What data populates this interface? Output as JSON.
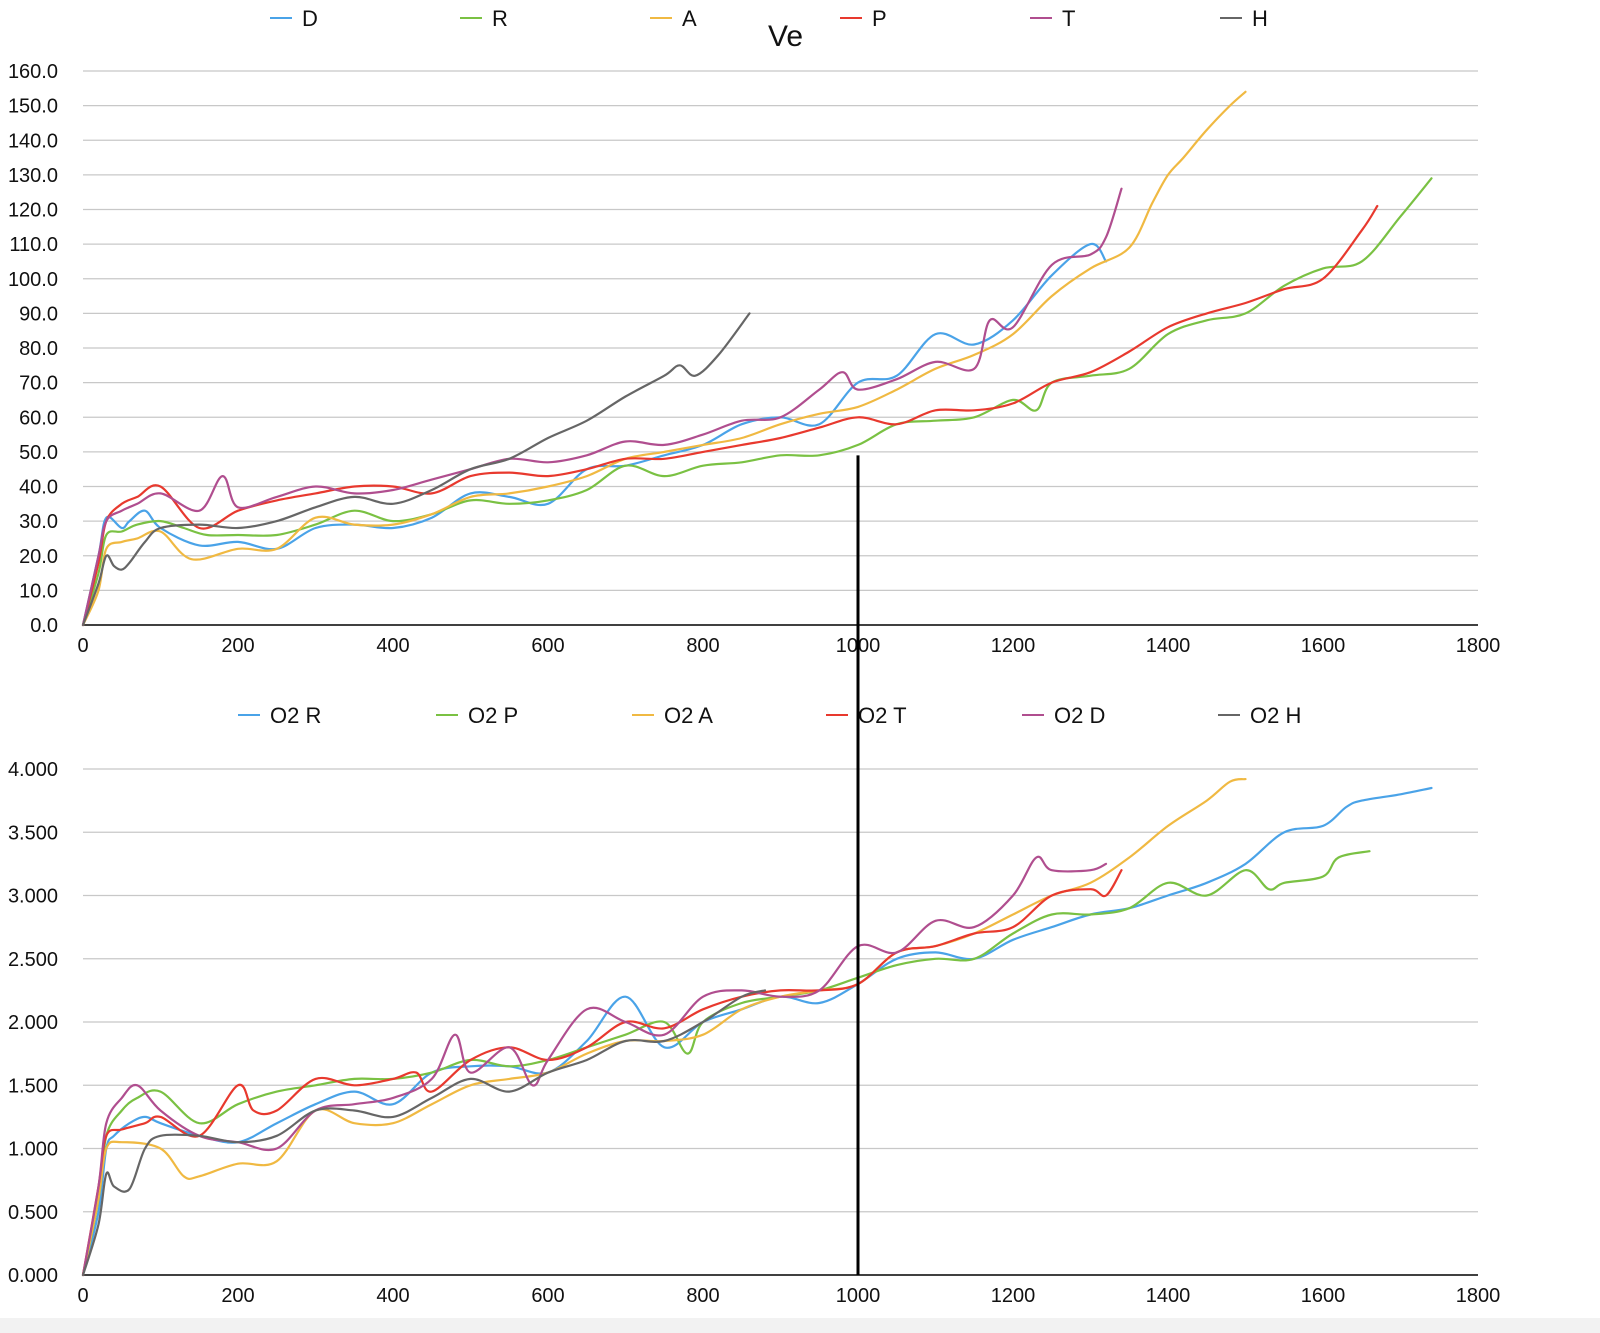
{
  "chart_data": [
    {
      "type": "line",
      "title": "Ve",
      "xlim": [
        0,
        1800
      ],
      "ylim": [
        0,
        160
      ],
      "x_ticks": [
        "0",
        "200",
        "400",
        "600",
        "800",
        "1000",
        "1200",
        "1400",
        "1600",
        "1800"
      ],
      "y_ticks": [
        "0.0",
        "10.0",
        "20.0",
        "30.0",
        "40.0",
        "50.0",
        "60.0",
        "70.0",
        "80.0",
        "90.0",
        "100.0",
        "110.0",
        "120.0",
        "130.0",
        "140.0",
        "150.0",
        "160.0"
      ],
      "legend_position": "top",
      "grid": true,
      "series": [
        {
          "name": "D",
          "color": "#4aa3e8",
          "x": [
            0,
            20,
            30,
            50,
            60,
            80,
            100,
            150,
            200,
            250,
            300,
            350,
            400,
            450,
            500,
            550,
            600,
            650,
            700,
            750,
            800,
            850,
            900,
            950,
            1000,
            1050,
            1100,
            1150,
            1200,
            1250,
            1300,
            1320
          ],
          "y": [
            0,
            20,
            31,
            28,
            30,
            33,
            28,
            23,
            24,
            22,
            28,
            29,
            28,
            31,
            38,
            37,
            35,
            45,
            46,
            49,
            52,
            58,
            60,
            58,
            70,
            72,
            84,
            81,
            88,
            101,
            110,
            105
          ]
        },
        {
          "name": "R",
          "color": "#7ac143",
          "x": [
            0,
            20,
            30,
            50,
            70,
            100,
            130,
            160,
            200,
            250,
            300,
            350,
            400,
            450,
            500,
            550,
            600,
            650,
            700,
            750,
            800,
            850,
            900,
            950,
            1000,
            1050,
            1100,
            1150,
            1200,
            1230,
            1250,
            1300,
            1350,
            1400,
            1450,
            1500,
            1550,
            1600,
            1650,
            1700,
            1740
          ],
          "y": [
            0,
            15,
            26,
            27,
            29,
            30,
            28,
            26,
            26,
            26,
            29,
            33,
            30,
            32,
            36,
            35,
            36,
            39,
            46,
            43,
            46,
            47,
            49,
            49,
            52,
            58,
            59,
            60,
            65,
            62,
            70,
            72,
            74,
            84,
            88,
            90,
            98,
            103,
            105,
            118,
            129
          ]
        },
        {
          "name": "A",
          "color": "#f0b942",
          "x": [
            0,
            20,
            30,
            50,
            70,
            100,
            140,
            200,
            250,
            300,
            350,
            400,
            450,
            500,
            550,
            600,
            650,
            700,
            750,
            800,
            850,
            900,
            950,
            1000,
            1050,
            1100,
            1150,
            1200,
            1250,
            1300,
            1350,
            1380,
            1400,
            1420,
            1450,
            1480,
            1500
          ],
          "y": [
            0,
            10,
            22,
            24,
            25,
            27,
            19,
            22,
            22,
            31,
            29,
            29,
            32,
            37,
            38,
            40,
            43,
            48,
            50,
            52,
            54,
            58,
            61,
            63,
            68,
            74,
            78,
            84,
            95,
            103,
            109,
            122,
            130,
            135,
            143,
            150,
            154
          ]
        },
        {
          "name": "P",
          "color": "#e8392e",
          "x": [
            0,
            20,
            30,
            50,
            70,
            100,
            150,
            200,
            250,
            300,
            350,
            400,
            450,
            500,
            550,
            600,
            650,
            700,
            750,
            800,
            850,
            900,
            950,
            1000,
            1050,
            1100,
            1150,
            1200,
            1250,
            1300,
            1350,
            1400,
            1450,
            1500,
            1550,
            1600,
            1650,
            1670
          ],
          "y": [
            0,
            18,
            30,
            35,
            37,
            40,
            28,
            33,
            36,
            38,
            40,
            40,
            38,
            43,
            44,
            43,
            45,
            48,
            48,
            50,
            52,
            54,
            57,
            60,
            58,
            62,
            62,
            64,
            70,
            73,
            79,
            86,
            90,
            93,
            97,
            100,
            114,
            121
          ]
        },
        {
          "name": "T",
          "color": "#b04e8f",
          "x": [
            0,
            20,
            30,
            50,
            70,
            100,
            150,
            180,
            200,
            250,
            300,
            350,
            400,
            450,
            500,
            550,
            600,
            650,
            700,
            750,
            800,
            850,
            900,
            950,
            980,
            1000,
            1050,
            1100,
            1150,
            1170,
            1200,
            1250,
            1300,
            1320,
            1340
          ],
          "y": [
            0,
            20,
            30,
            33,
            35,
            38,
            33,
            43,
            34,
            37,
            40,
            38,
            39,
            42,
            45,
            48,
            47,
            49,
            53,
            52,
            55,
            59,
            60,
            68,
            73,
            68,
            71,
            76,
            74,
            88,
            86,
            104,
            107,
            112,
            126
          ]
        },
        {
          "name": "H",
          "color": "#666666",
          "x": [
            0,
            20,
            30,
            40,
            50,
            60,
            80,
            100,
            150,
            200,
            250,
            300,
            350,
            400,
            450,
            500,
            550,
            600,
            650,
            700,
            750,
            770,
            790,
            820,
            860
          ],
          "y": [
            0,
            12,
            20,
            17,
            16,
            18,
            24,
            28,
            29,
            28,
            30,
            34,
            37,
            35,
            39,
            45,
            48,
            54,
            59,
            66,
            72,
            75,
            72,
            78,
            90
          ]
        }
      ]
    },
    {
      "type": "line",
      "title": "",
      "xlim": [
        0,
        1800
      ],
      "ylim": [
        0,
        4
      ],
      "x_ticks": [
        "0",
        "200",
        "400",
        "600",
        "800",
        "1000",
        "1200",
        "1400",
        "1600",
        "1800"
      ],
      "y_ticks": [
        "0.000",
        "0.500",
        "1.000",
        "1.500",
        "2.000",
        "2.500",
        "3.000",
        "3.500",
        "4.000"
      ],
      "legend_position": "top",
      "grid": true,
      "series": [
        {
          "name": "O2 R",
          "color": "#4aa3e8",
          "x": [
            0,
            20,
            30,
            40,
            60,
            80,
            100,
            150,
            200,
            250,
            300,
            350,
            400,
            450,
            500,
            550,
            600,
            650,
            700,
            750,
            800,
            850,
            900,
            950,
            1000,
            1050,
            1100,
            1150,
            1200,
            1250,
            1300,
            1350,
            1400,
            1450,
            1500,
            1550,
            1600,
            1630,
            1650,
            1700,
            1740
          ],
          "y": [
            0,
            0.5,
            1.0,
            1.1,
            1.2,
            1.25,
            1.2,
            1.1,
            1.05,
            1.2,
            1.35,
            1.45,
            1.35,
            1.6,
            1.65,
            1.65,
            1.6,
            1.85,
            2.2,
            1.8,
            2.0,
            2.1,
            2.2,
            2.15,
            2.3,
            2.5,
            2.55,
            2.5,
            2.65,
            2.75,
            2.85,
            2.9,
            3.0,
            3.1,
            3.25,
            3.5,
            3.55,
            3.7,
            3.75,
            3.8,
            3.85
          ]
        },
        {
          "name": "O2 P",
          "color": "#7ac143",
          "x": [
            0,
            20,
            30,
            50,
            70,
            100,
            150,
            200,
            250,
            300,
            350,
            400,
            450,
            500,
            550,
            600,
            650,
            700,
            750,
            780,
            800,
            850,
            900,
            950,
            1000,
            1050,
            1100,
            1150,
            1200,
            1250,
            1300,
            1350,
            1400,
            1450,
            1500,
            1530,
            1550,
            1600,
            1620,
            1660
          ],
          "y": [
            0,
            0.6,
            1.1,
            1.3,
            1.4,
            1.45,
            1.2,
            1.35,
            1.45,
            1.5,
            1.55,
            1.55,
            1.6,
            1.7,
            1.65,
            1.7,
            1.8,
            1.9,
            2.0,
            1.75,
            2.0,
            2.15,
            2.2,
            2.25,
            2.35,
            2.45,
            2.5,
            2.5,
            2.7,
            2.85,
            2.85,
            2.9,
            3.1,
            3.0,
            3.2,
            3.05,
            3.1,
            3.15,
            3.3,
            3.35
          ]
        },
        {
          "name": "O2 A",
          "color": "#f0b942",
          "x": [
            0,
            20,
            30,
            50,
            100,
            130,
            150,
            200,
            250,
            300,
            350,
            400,
            450,
            500,
            550,
            600,
            650,
            700,
            750,
            800,
            850,
            900,
            950,
            1000,
            1050,
            1100,
            1150,
            1200,
            1250,
            1300,
            1350,
            1400,
            1450,
            1480,
            1500
          ],
          "y": [
            0,
            0.6,
            1.0,
            1.05,
            1.0,
            0.78,
            0.78,
            0.88,
            0.9,
            1.3,
            1.2,
            1.2,
            1.35,
            1.5,
            1.55,
            1.6,
            1.75,
            1.85,
            1.85,
            1.9,
            2.1,
            2.2,
            2.25,
            2.3,
            2.55,
            2.6,
            2.7,
            2.85,
            3.0,
            3.1,
            3.3,
            3.55,
            3.75,
            3.9,
            3.92
          ]
        },
        {
          "name": "O2 T",
          "color": "#e8392e",
          "x": [
            0,
            20,
            30,
            50,
            80,
            100,
            150,
            200,
            220,
            250,
            300,
            350,
            400,
            430,
            450,
            500,
            550,
            600,
            650,
            700,
            750,
            800,
            850,
            900,
            950,
            1000,
            1050,
            1100,
            1150,
            1200,
            1250,
            1300,
            1320,
            1340
          ],
          "y": [
            0,
            0.7,
            1.1,
            1.15,
            1.2,
            1.25,
            1.1,
            1.5,
            1.3,
            1.3,
            1.55,
            1.5,
            1.55,
            1.6,
            1.45,
            1.7,
            1.8,
            1.7,
            1.8,
            2.0,
            1.95,
            2.1,
            2.2,
            2.25,
            2.25,
            2.3,
            2.55,
            2.6,
            2.7,
            2.75,
            3.0,
            3.05,
            3.0,
            3.2
          ]
        },
        {
          "name": "O2 D",
          "color": "#b04e8f",
          "x": [
            0,
            20,
            30,
            50,
            70,
            100,
            150,
            200,
            250,
            300,
            350,
            400,
            450,
            480,
            500,
            550,
            580,
            600,
            650,
            700,
            750,
            800,
            850,
            900,
            950,
            1000,
            1050,
            1100,
            1150,
            1200,
            1230,
            1250,
            1300,
            1320
          ],
          "y": [
            0,
            0.7,
            1.2,
            1.4,
            1.5,
            1.3,
            1.1,
            1.05,
            1.0,
            1.3,
            1.35,
            1.4,
            1.55,
            1.9,
            1.6,
            1.8,
            1.5,
            1.7,
            2.1,
            2.0,
            1.9,
            2.2,
            2.25,
            2.2,
            2.25,
            2.6,
            2.55,
            2.8,
            2.75,
            3.0,
            3.3,
            3.2,
            3.2,
            3.25
          ]
        },
        {
          "name": "O2 H",
          "color": "#666666",
          "x": [
            0,
            20,
            30,
            40,
            60,
            80,
            100,
            150,
            200,
            250,
            300,
            350,
            400,
            450,
            500,
            550,
            600,
            650,
            700,
            750,
            800,
            850,
            880
          ],
          "y": [
            0,
            0.4,
            0.8,
            0.7,
            0.68,
            1.0,
            1.1,
            1.1,
            1.05,
            1.1,
            1.3,
            1.3,
            1.25,
            1.4,
            1.55,
            1.45,
            1.6,
            1.7,
            1.85,
            1.85,
            2.0,
            2.2,
            2.25
          ]
        }
      ]
    }
  ],
  "marker_line": {
    "x": 1000,
    "color": "#000000"
  }
}
